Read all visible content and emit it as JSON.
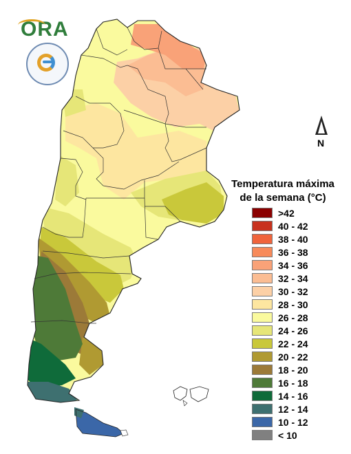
{
  "brand": {
    "logo_text": "ORA",
    "seal_text": "INSTITUTO NACIONAL DE METEOROLOGÍA Y CLIMA ARGENTINA",
    "seal_name": "ARGENTINA"
  },
  "north_label": "N",
  "legend": {
    "title_line1": "Temperatura máxima",
    "title_line2": "de la semana (°C)",
    "items": [
      {
        "label": ">42",
        "color": "#8b0000"
      },
      {
        "label": "40 - 42",
        "color": "#c8321e"
      },
      {
        "label": "38 - 40",
        "color": "#f0643c"
      },
      {
        "label": "36 - 38",
        "color": "#f78a5a"
      },
      {
        "label": "34 - 36",
        "color": "#f9a278"
      },
      {
        "label": "32 - 34",
        "color": "#fbbd93"
      },
      {
        "label": "30 - 32",
        "color": "#fcd0a6"
      },
      {
        "label": "28 - 30",
        "color": "#fde6a0"
      },
      {
        "label": "26 - 28",
        "color": "#fafa9e"
      },
      {
        "label": "24 - 26",
        "color": "#e6e678"
      },
      {
        "label": "22 - 24",
        "color": "#c9c83a"
      },
      {
        "label": "20 - 22",
        "color": "#b09a32"
      },
      {
        "label": "18 - 20",
        "color": "#9c7a38"
      },
      {
        "label": "16 - 18",
        "color": "#4e7a38"
      },
      {
        "label": "14 - 16",
        "color": "#0f6b3a"
      },
      {
        "label": "12 - 14",
        "color": "#3e7070"
      },
      {
        "label": "10 - 12",
        "color": "#3b67a8"
      },
      {
        "label": "< 10",
        "color": "#808080"
      }
    ]
  },
  "map": {
    "country": "Argentina",
    "zone_colors": {
      "z34_36": "#f9a278",
      "z32_34": "#fbbd93",
      "z30_32": "#fcd0a6",
      "z28_30": "#fde6a0",
      "z26_28": "#fafa9e",
      "z24_26": "#e6e678",
      "z22_24": "#c9c83a",
      "z20_22": "#b09a32",
      "z18_20": "#9c7a38",
      "z16_18": "#4e7a38",
      "z14_16": "#0f6b3a",
      "z12_14": "#3e7070",
      "z10_12": "#3b67a8"
    }
  }
}
